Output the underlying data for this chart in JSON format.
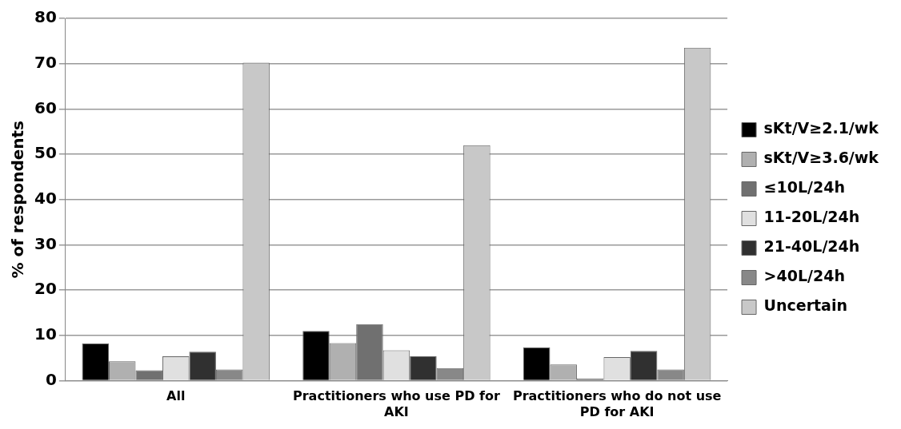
{
  "chart_data": {
    "type": "bar",
    "ylabel": "% of respondents",
    "categories": [
      "All",
      "Practitioners who use PD for AKI",
      "Practitioners who do not use PD for AKI"
    ],
    "series": [
      {
        "name": "sKt/V≥2.1/wk",
        "color": "#000000",
        "values": [
          8.2,
          11.0,
          7.4
        ]
      },
      {
        "name": "sKt/V≥3.6/wk",
        "color": "#b0b0b0",
        "values": [
          4.3,
          8.3,
          3.6
        ]
      },
      {
        "name": "≤10L/24h",
        "color": "#707070",
        "values": [
          2.3,
          12.5,
          0.5
        ]
      },
      {
        "name": "11-20L/24h",
        "color": "#e0e0e0",
        "values": [
          5.4,
          6.7,
          5.2
        ]
      },
      {
        "name": "21-40L/24h",
        "color": "#303030",
        "values": [
          6.4,
          5.4,
          6.6
        ]
      },
      {
        "name": ">40L/24h",
        "color": "#888888",
        "values": [
          2.5,
          2.8,
          2.5
        ]
      },
      {
        "name": "Uncertain",
        "color": "#c8c8c8",
        "values": [
          70.2,
          52,
          73.5
        ]
      }
    ],
    "ylim": [
      0,
      80
    ],
    "yticks": [
      0,
      10,
      20,
      30,
      40,
      50,
      60,
      70,
      80
    ],
    "grid": "y",
    "legend": "right"
  }
}
